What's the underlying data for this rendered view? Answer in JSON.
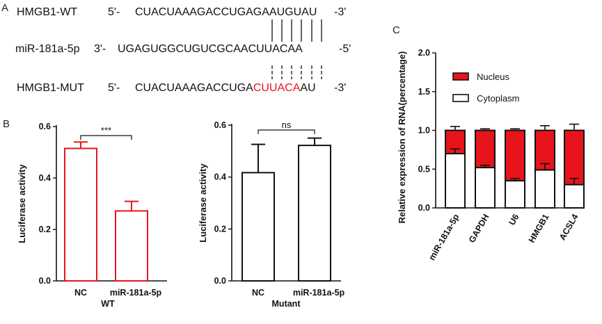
{
  "panel_letters": {
    "a": "A",
    "b": "B",
    "c": "C"
  },
  "sequences": {
    "rows": [
      {
        "label": "HMGB1-WT",
        "five": "5'-",
        "seq_pre": "CUACUAAAGACCUGAG",
        "seq_hl": "",
        "seq_post": "AAUGUAU",
        "end": "-3'"
      },
      {
        "label": "miR-181a-5p",
        "five": "3'-",
        "seq_pre": "UGAGUGGCUGUCGCAACUUACAA",
        "seq_hl": "",
        "seq_post": "",
        "end": "-5'"
      },
      {
        "label": "HMGB1-MUT",
        "five": "5'-",
        "seq_pre": "CUACUAAAGACCUGA",
        "seq_hl": "CUUACA",
        "seq_post": "AU",
        "end": "-3'"
      }
    ],
    "highlight_color": "#e8141c"
  },
  "chart_data": [
    {
      "type": "bar",
      "panel": "B",
      "categories": [
        "NC",
        "miR-181a-5p"
      ],
      "group_label": "WT",
      "values": [
        0.515,
        0.272
      ],
      "errors": [
        0.025,
        0.037
      ],
      "ylabel": "Luciferase activity",
      "ylim": [
        0,
        0.6
      ],
      "yticks": [
        "0.0",
        "0.2",
        "0.4",
        "0.6"
      ],
      "yticks_values": [
        0,
        0.2,
        0.4,
        0.6
      ],
      "significance": "***",
      "color": "#e8141c"
    },
    {
      "type": "bar",
      "panel": "B",
      "categories": [
        "NC",
        "miR-181a-5p"
      ],
      "group_label": "Mutant",
      "values": [
        0.417,
        0.522
      ],
      "errors": [
        0.109,
        0.028
      ],
      "ylabel": "Luciferase activity",
      "ylim": [
        0,
        0.6
      ],
      "yticks": [
        "0.0",
        "0.2",
        "0.4",
        "0.6"
      ],
      "yticks_values": [
        0,
        0.2,
        0.4,
        0.6
      ],
      "significance": "ns",
      "color": "#111111"
    },
    {
      "type": "bar",
      "stacked": true,
      "panel": "C",
      "categories": [
        "miR-181a-5p",
        "GAPDH",
        "U6",
        "HMGB1",
        "ACSL4"
      ],
      "series": [
        {
          "name": "Cytoplasm",
          "values": [
            0.7,
            0.52,
            0.35,
            0.49,
            0.3
          ],
          "errors": [
            0.06,
            0.03,
            0.03,
            0.08,
            0.08
          ],
          "color": "#ffffff"
        },
        {
          "name": "Nucleus",
          "values": [
            0.3,
            0.48,
            0.65,
            0.51,
            0.7
          ],
          "errors": [
            0.05,
            0.02,
            0.02,
            0.06,
            0.08
          ],
          "color": "#e8141c"
        }
      ],
      "ylabel": "Relative expression of RNA(percentage)",
      "ylim": [
        0,
        2.0
      ],
      "yticks": [
        "0.0",
        "0.5",
        "1.0",
        "1.5",
        "2.0"
      ],
      "yticks_values": [
        0,
        0.5,
        1.0,
        1.5,
        2.0
      ],
      "legend": [
        "Nucleus",
        "Cytoplasm"
      ],
      "legend_position": "top-left"
    }
  ]
}
